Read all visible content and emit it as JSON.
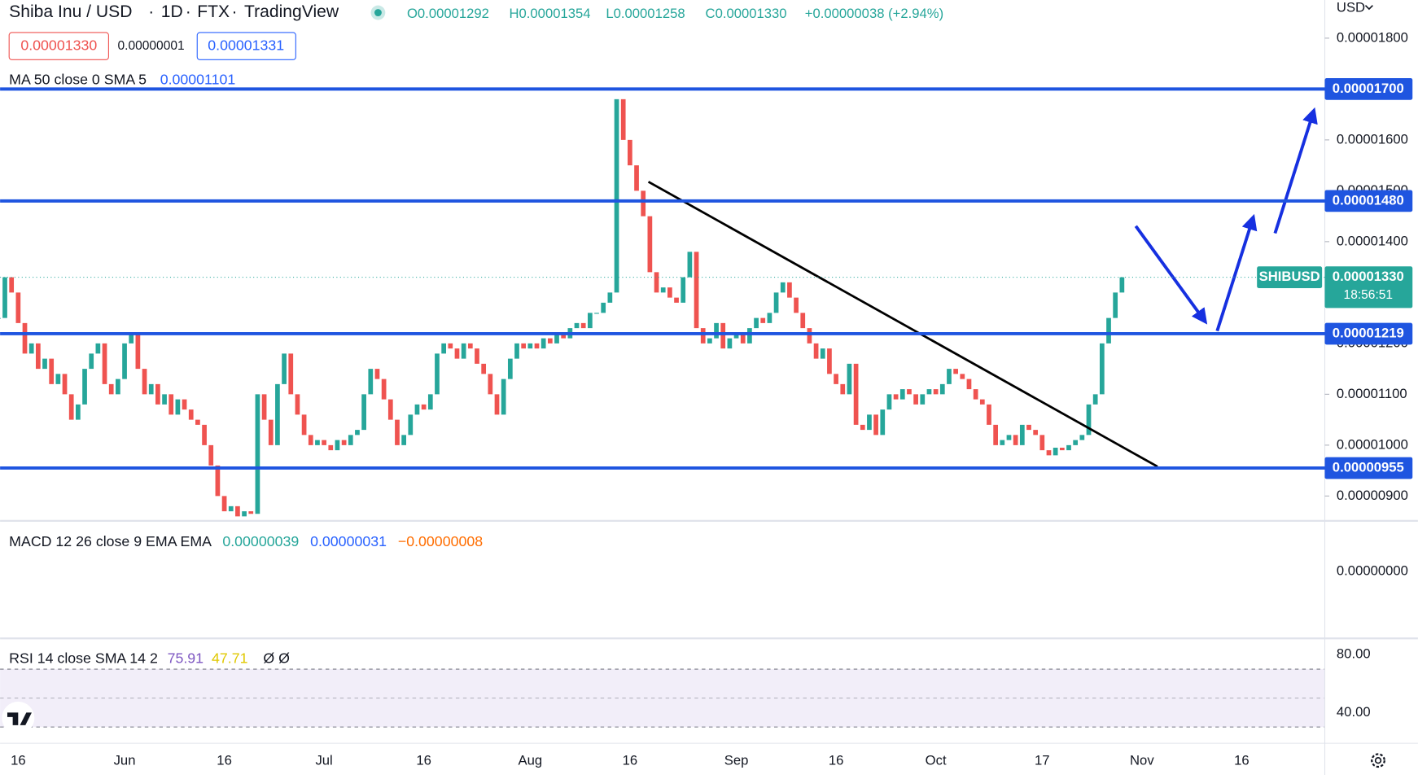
{
  "header": {
    "symbol": "Shiba Inu / USD",
    "interval": "1D",
    "exchange": "FTX",
    "source": "TradingView",
    "open": "O0.00001292",
    "high": "H0.00001354",
    "low": "L0.00001258",
    "close": "C0.00001330",
    "change": "+0.00000038 (+2.94%)",
    "sell": "0.00001330",
    "spread": "0.00000001",
    "buy": "0.00001331",
    "currency": "USD"
  },
  "chart_data": {
    "type": "candlestick",
    "ma_legend": {
      "label": "MA 50 close 0 SMA 5",
      "value": "0.00001101"
    },
    "categories": [
      null,
      null,
      null,
      "16",
      null,
      null,
      null,
      null,
      null,
      null,
      null,
      null,
      null,
      null,
      null,
      null,
      null,
      null,
      null,
      "Jun",
      null,
      null,
      null,
      null,
      null,
      null,
      null,
      null,
      null,
      null,
      null,
      null,
      null,
      null,
      "16",
      null,
      null,
      null,
      null,
      null,
      null,
      null,
      null,
      null,
      null,
      null,
      null,
      null,
      null,
      "Jul",
      null,
      null,
      null,
      null,
      null,
      null,
      null,
      null,
      null,
      null,
      null,
      null,
      null,
      null,
      "16",
      null,
      null,
      null,
      null,
      null,
      null,
      null,
      null,
      null,
      null,
      null,
      null,
      null,
      null,
      null,
      "Aug",
      null,
      null,
      null,
      null,
      null,
      null,
      null,
      null,
      null,
      null,
      null,
      null,
      null,
      null,
      "16",
      null,
      null,
      null,
      null,
      null,
      null,
      null,
      null,
      null,
      null,
      null,
      null,
      null,
      null,
      null,
      "Sep",
      null,
      null,
      null,
      null,
      null,
      null,
      null,
      null,
      null,
      null,
      null,
      null,
      null,
      null,
      "16",
      null,
      null,
      null,
      null,
      null,
      null,
      null,
      null,
      null,
      null,
      null,
      null,
      null,
      null,
      "Oct",
      null,
      null,
      null,
      null,
      null,
      null,
      null,
      null,
      null,
      null,
      null,
      null,
      null,
      null,
      null,
      "17",
      null,
      null,
      null,
      null,
      null,
      null,
      null,
      null,
      null,
      null,
      null,
      null,
      null,
      null,
      "Nov",
      null,
      null,
      null,
      null,
      null,
      null,
      null,
      null,
      null,
      null,
      null,
      null,
      null,
      null,
      "16",
      null,
      null,
      null,
      null,
      null,
      null,
      null,
      null,
      null,
      null,
      null,
      null
    ],
    "values": [
      1.25e-05,
      1.33e-05,
      1.3e-05,
      1.24e-05,
      1.18e-05,
      1.2e-05,
      1.15e-05,
      1.17e-05,
      1.12e-05,
      1.14e-05,
      1.1e-05,
      1.05e-05,
      1.08e-05,
      1.15e-05,
      1.18e-05,
      1.2e-05,
      1.12e-05,
      1.1e-05,
      1.13e-05,
      1.2e-05,
      1.22e-05,
      1.15e-05,
      1.1e-05,
      1.12e-05,
      1.08e-05,
      1.1e-05,
      1.06e-05,
      1.09e-05,
      1.07e-05,
      1.05e-05,
      1.04e-05,
      1e-05,
      9.6e-06,
      9e-06,
      8.7e-06,
      8.8e-06,
      8.6e-06,
      8.7e-06,
      8.65e-06,
      1.1e-05,
      1.05e-05,
      1e-05,
      1.12e-05,
      1.18e-05,
      1.1e-05,
      1.06e-05,
      1.02e-05,
      1e-05,
      1.01e-05,
      1e-05,
      9.9e-06,
      1.01e-05,
      1e-05,
      1.02e-05,
      1.03e-05,
      1.1e-05,
      1.15e-05,
      1.13e-05,
      1.09e-05,
      1.05e-05,
      1e-05,
      1.02e-05,
      1.06e-05,
      1.08e-05,
      1.07e-05,
      1.1e-05,
      1.18e-05,
      1.2e-05,
      1.19e-05,
      1.17e-05,
      1.2e-05,
      1.19e-05,
      1.16e-05,
      1.14e-05,
      1.1e-05,
      1.06e-05,
      1.13e-05,
      1.17e-05,
      1.2e-05,
      1.19e-05,
      1.2e-05,
      1.19e-05,
      1.21e-05,
      1.2e-05,
      1.22e-05,
      1.21e-05,
      1.23e-05,
      1.24e-05,
      1.23e-05,
      1.26e-05,
      1.26e-05,
      1.28e-05,
      1.3e-05,
      1.68e-05,
      1.6e-05,
      1.55e-05,
      1.5e-05,
      1.45e-05,
      1.34e-05,
      1.3e-05,
      1.31e-05,
      1.29e-05,
      1.28e-05,
      1.33e-05,
      1.38e-05,
      1.23e-05,
      1.2e-05,
      1.21e-05,
      1.24e-05,
      1.19e-05,
      1.21e-05,
      1.22e-05,
      1.2e-05,
      1.23e-05,
      1.25e-05,
      1.24e-05,
      1.26e-05,
      1.3e-05,
      1.32e-05,
      1.29e-05,
      1.26e-05,
      1.23e-05,
      1.2e-05,
      1.17e-05,
      1.19e-05,
      1.14e-05,
      1.12e-05,
      1.1e-05,
      1.16e-05,
      1.04e-05,
      1.03e-05,
      1.06e-05,
      1.02e-05,
      1.07e-05,
      1.1e-05,
      1.09e-05,
      1.11e-05,
      1.1e-05,
      1.08e-05,
      1.1e-05,
      1.11e-05,
      1.1e-05,
      1.12e-05,
      1.15e-05,
      1.14e-05,
      1.13e-05,
      1.11e-05,
      1.09e-05,
      1.08e-05,
      1.04e-05,
      1e-05,
      1.01e-05,
      1.02e-05,
      1e-05,
      1.04e-05,
      1.03e-05,
      1.02e-05,
      9.9e-06,
      9.8e-06,
      9.95e-06,
      9.9e-06,
      1e-05,
      1.01e-05,
      1.02e-05,
      1.08e-05,
      1.1e-05,
      1.2e-05,
      1.25e-05,
      1.3e-05,
      1.33e-05,
      null,
      null,
      null,
      null,
      null,
      null,
      null,
      null,
      null,
      null,
      null,
      null,
      null,
      null,
      null,
      null,
      null,
      null,
      null,
      null,
      null,
      null,
      null,
      null,
      null,
      null,
      null,
      null,
      null,
      null
    ],
    "up_color": "#26a69a",
    "down_color": "#ef5350",
    "ylim": [
      8.53e-06,
      1.875e-05
    ],
    "yticks": [
      {
        "value": 1.8e-05,
        "label": "0.00001800"
      },
      {
        "value": 1.6e-05,
        "label": "0.00001600"
      },
      {
        "value": 1.5e-05,
        "label": "0.00001500"
      },
      {
        "value": 1.4e-05,
        "label": "0.00001400"
      },
      {
        "value": 1.2e-05,
        "label": "0.00001200"
      },
      {
        "value": 1.1e-05,
        "label": "0.00001100"
      },
      {
        "value": 1e-05,
        "label": "0.00001000"
      },
      {
        "value": 9e-06,
        "label": "0.00000900"
      }
    ],
    "levels": [
      {
        "value": 1.7e-05,
        "label": "0.00001700"
      },
      {
        "value": 1.48e-05,
        "label": "0.00001480"
      },
      {
        "value": 1.219e-05,
        "label": "0.00001219"
      },
      {
        "value": 9.55e-06,
        "label": "0.00000955"
      }
    ],
    "level_color": "#1f55e0",
    "last_price": {
      "name": "SHIBUSD",
      "value": 1.33e-05,
      "label": "0.00001330",
      "countdown": "18:56:51"
    },
    "macd": {
      "label": "MACD 12 26 close 9 EMA EMA",
      "hist": "0.00000039",
      "macd": "0.00000031",
      "signal": "−0.00000008",
      "axis_label": "0.00000000"
    },
    "rsi": {
      "label": "RSI 14 close SMA 14 2",
      "rsi": "75.91",
      "sma": "47.71",
      "extra": "Ø Ø",
      "ticks": [
        "80.00",
        "40.00"
      ]
    }
  }
}
